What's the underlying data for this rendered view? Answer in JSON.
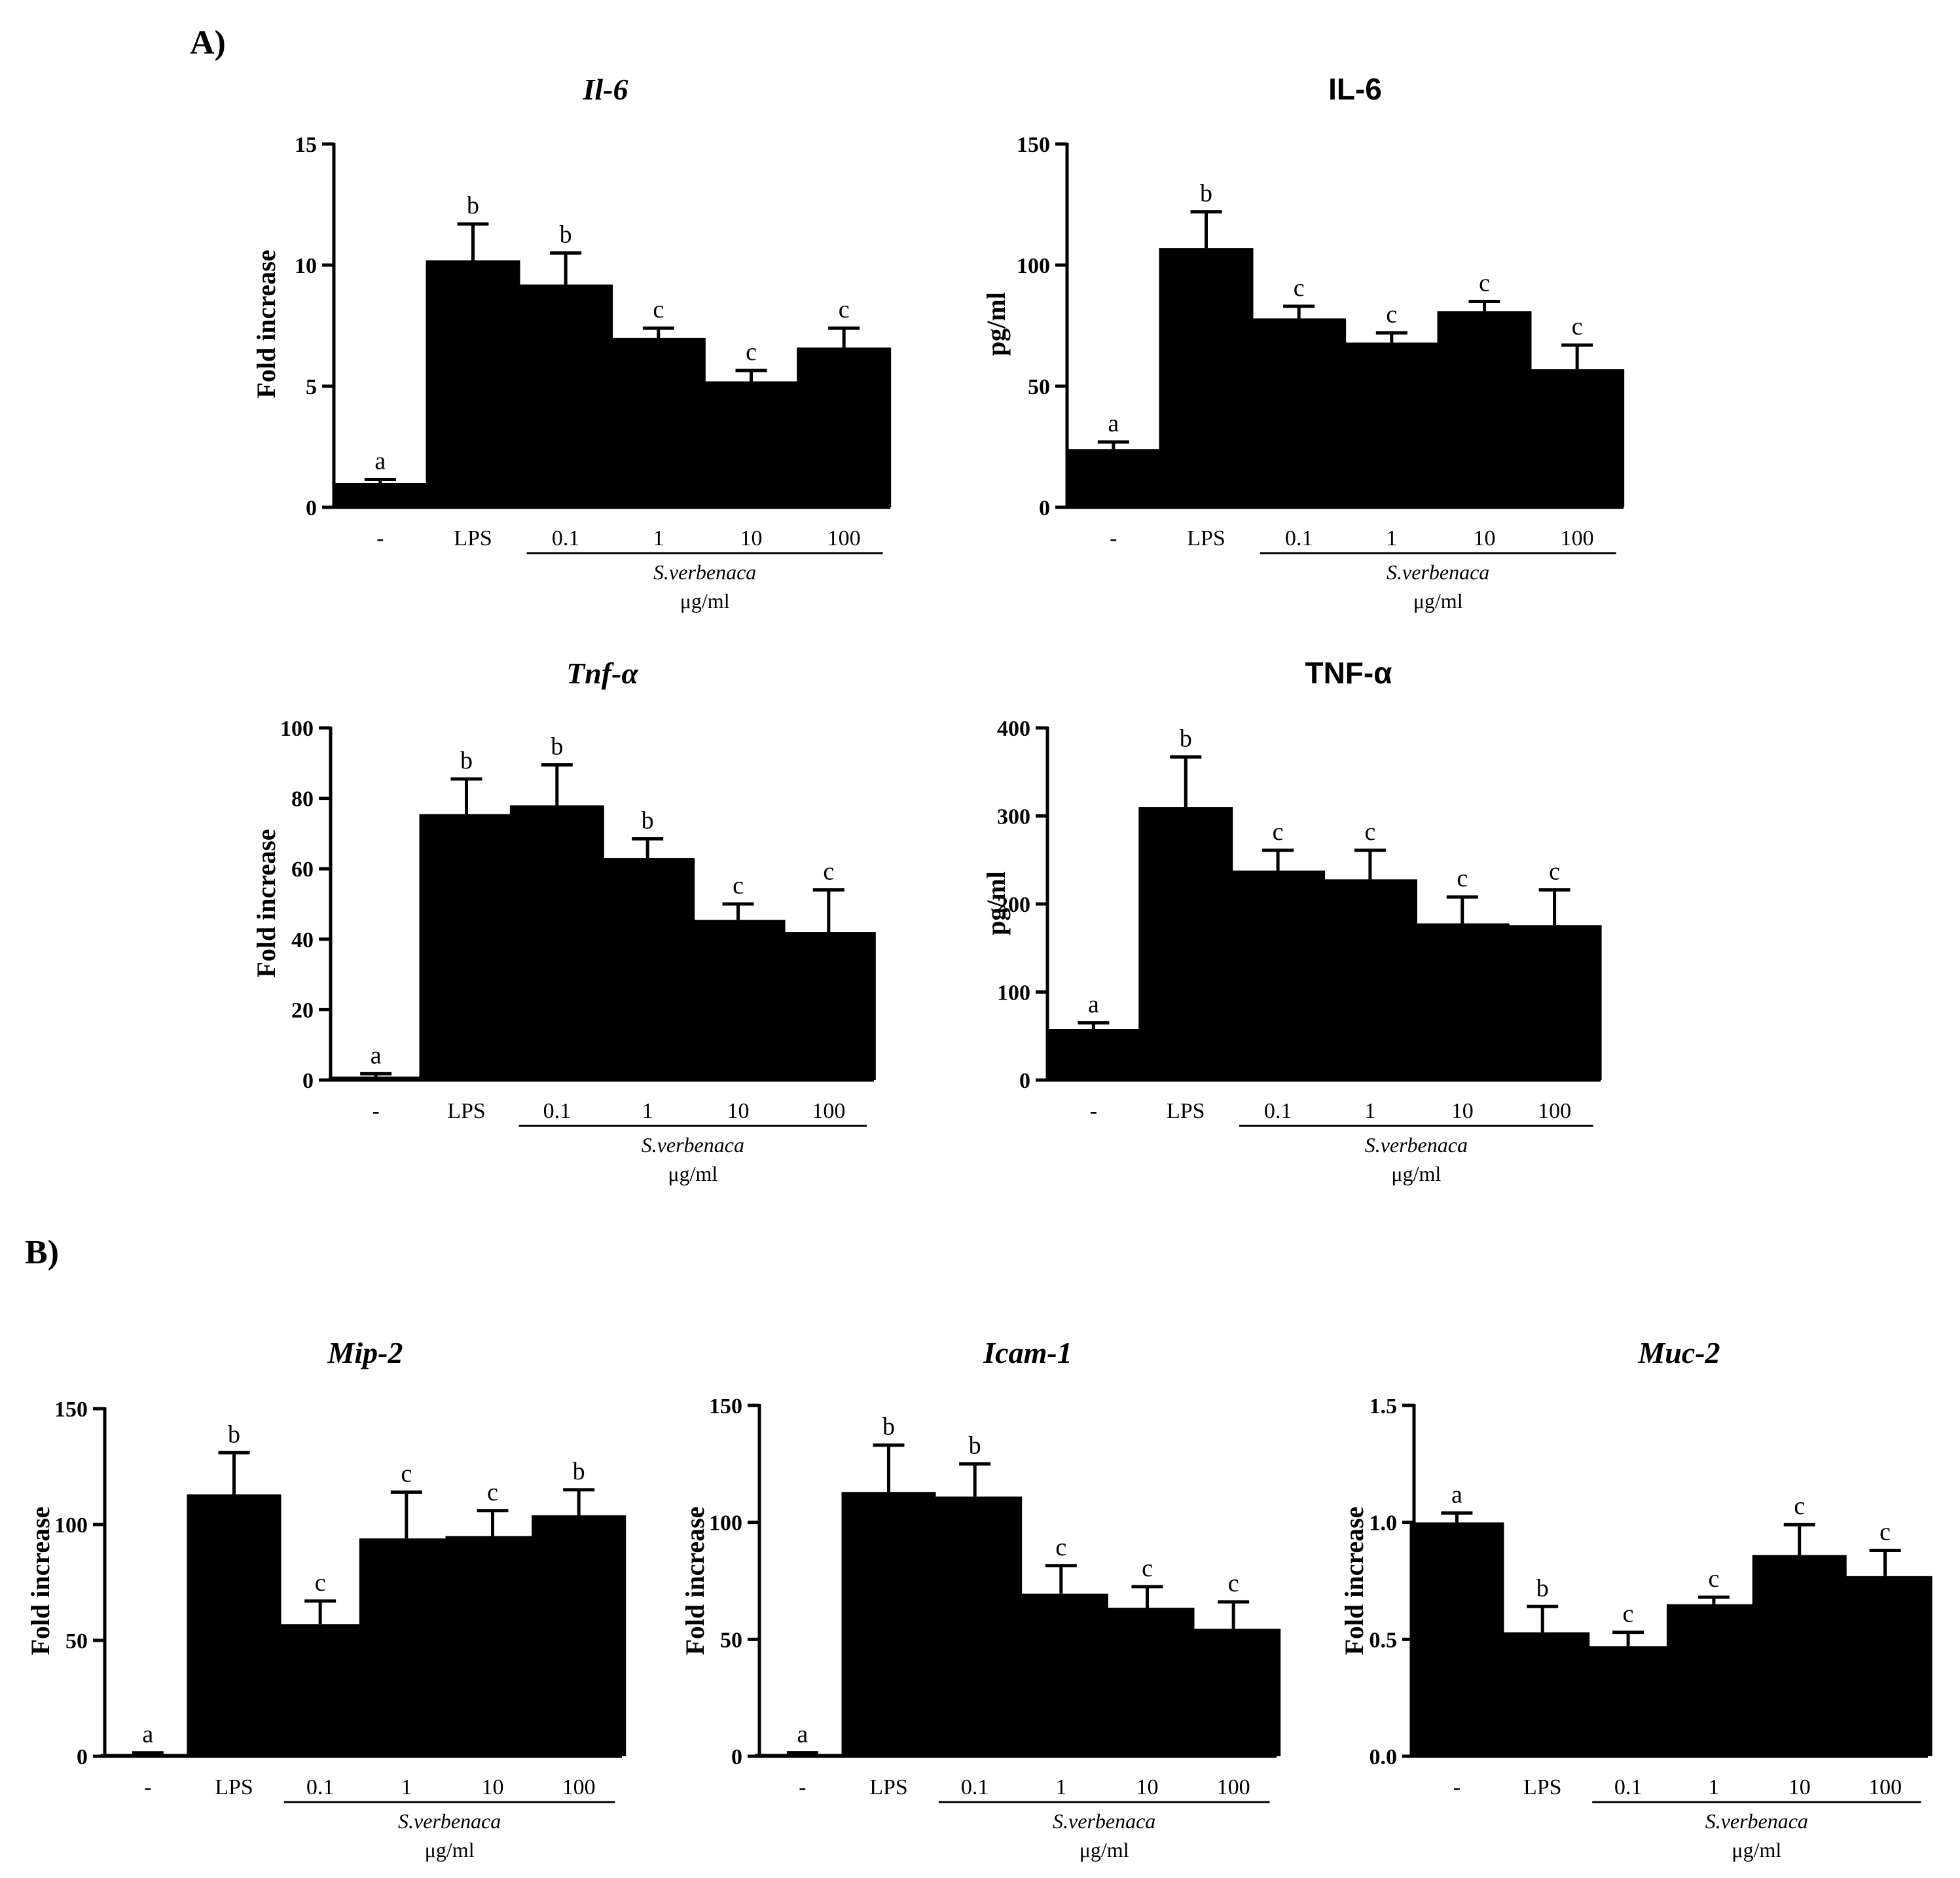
{
  "panel_labels": {
    "a": "A)",
    "b": "B)"
  },
  "chart_data": [
    {
      "id": "il6-gene",
      "type": "bar",
      "title": "Il-6",
      "title_style": "gene",
      "ylabel": "Fold increase",
      "ylim": [
        0,
        15
      ],
      "yticks": [
        "0",
        "5",
        "10",
        "15"
      ],
      "categories": [
        "-",
        "LPS",
        "0.1",
        "1",
        "10",
        "100"
      ],
      "values": [
        1.0,
        10.2,
        9.2,
        7.0,
        5.2,
        6.6
      ],
      "errors": [
        0.15,
        1.5,
        1.3,
        0.4,
        0.45,
        0.8
      ],
      "letters": [
        "a",
        "b",
        "b",
        "c",
        "c",
        "c"
      ],
      "group_label": "S.verbenaca",
      "unit_label": "μg/ml"
    },
    {
      "id": "il6-protein",
      "type": "bar",
      "title": "IL-6",
      "title_style": "protein",
      "ylabel": "pg/ml",
      "ylim": [
        0,
        150
      ],
      "yticks": [
        "0",
        "50",
        "100",
        "150"
      ],
      "categories": [
        "-",
        "LPS",
        "0.1",
        "1",
        "10",
        "100"
      ],
      "values": [
        24,
        107,
        78,
        68,
        81,
        57
      ],
      "errors": [
        3,
        15,
        5,
        4,
        4,
        10
      ],
      "letters": [
        "a",
        "b",
        "c",
        "c",
        "c",
        "c"
      ],
      "group_label": "S.verbenaca",
      "unit_label": "μg/ml"
    },
    {
      "id": "tnf-gene",
      "type": "bar",
      "title": "Tnf-α",
      "title_style": "gene",
      "ylabel": "Fold increase",
      "ylim": [
        0,
        100
      ],
      "yticks": [
        "0",
        "20",
        "40",
        "60",
        "80",
        "100"
      ],
      "categories": [
        "-",
        "LPS",
        "0.1",
        "1",
        "10",
        "100"
      ],
      "values": [
        1.0,
        75.5,
        78,
        63,
        45.5,
        42
      ],
      "errors": [
        0.8,
        10,
        11.5,
        5.5,
        4.5,
        12
      ],
      "letters": [
        "a",
        "b",
        "b",
        "b",
        "c",
        "c"
      ],
      "group_label": "S.verbenaca",
      "unit_label": "μg/ml"
    },
    {
      "id": "tnf-protein",
      "type": "bar",
      "title": "TNF-α",
      "title_style": "protein",
      "ylabel": "pg/ml",
      "ylim": [
        0,
        400
      ],
      "yticks": [
        "0",
        "100",
        "200",
        "300",
        "400"
      ],
      "categories": [
        "-",
        "LPS",
        "0.1",
        "1",
        "10",
        "100"
      ],
      "values": [
        58,
        310,
        238,
        228,
        178,
        176
      ],
      "errors": [
        7,
        57,
        23,
        33,
        30,
        40
      ],
      "letters": [
        "a",
        "b",
        "c",
        "c",
        "c",
        "c"
      ],
      "group_label": "S.verbenaca",
      "unit_label": "μg/ml"
    },
    {
      "id": "mip2",
      "type": "bar",
      "title": "Mip-2",
      "title_style": "gene",
      "ylabel": "Fold increase",
      "ylim": [
        0,
        150
      ],
      "yticks": [
        "0",
        "50",
        "100",
        "150"
      ],
      "categories": [
        "-",
        "LPS",
        "0.1",
        "1",
        "10",
        "100"
      ],
      "values": [
        1.0,
        113,
        57,
        94,
        95,
        104
      ],
      "errors": [
        0.5,
        18,
        10,
        20,
        11,
        11
      ],
      "letters": [
        "a",
        "b",
        "c",
        "c",
        "c",
        "b"
      ],
      "group_label": "S.verbenaca",
      "unit_label": "μg/ml"
    },
    {
      "id": "icam1",
      "type": "bar",
      "title": "Icam-1",
      "title_style": "gene",
      "ylabel": "Fold increase",
      "ylim": [
        0,
        150
      ],
      "yticks": [
        "0",
        "50",
        "100",
        "150"
      ],
      "categories": [
        "-",
        "LPS",
        "0.1",
        "1",
        "10",
        "100"
      ],
      "values": [
        1.0,
        113,
        111,
        69.5,
        63.5,
        54.5
      ],
      "errors": [
        0.5,
        20,
        14,
        12,
        9,
        11.5
      ],
      "letters": [
        "a",
        "b",
        "b",
        "c",
        "c",
        "c"
      ],
      "group_label": "S.verbenaca",
      "unit_label": "μg/ml"
    },
    {
      "id": "muc2",
      "type": "bar",
      "title": "Muc-2",
      "title_style": "gene",
      "ylabel": "Fold increase",
      "ylim": [
        0,
        1.5
      ],
      "yticks": [
        "0.0",
        "0.5",
        "1.0",
        "1.5"
      ],
      "categories": [
        "-",
        "LPS",
        "0.1",
        "1",
        "10",
        "100"
      ],
      "values": [
        1.0,
        0.53,
        0.47,
        0.65,
        0.86,
        0.77
      ],
      "errors": [
        0.04,
        0.11,
        0.06,
        0.03,
        0.13,
        0.11
      ],
      "letters": [
        "a",
        "b",
        "c",
        "c",
        "c",
        "c"
      ],
      "group_label": "S.verbenaca",
      "unit_label": "μg/ml"
    }
  ]
}
